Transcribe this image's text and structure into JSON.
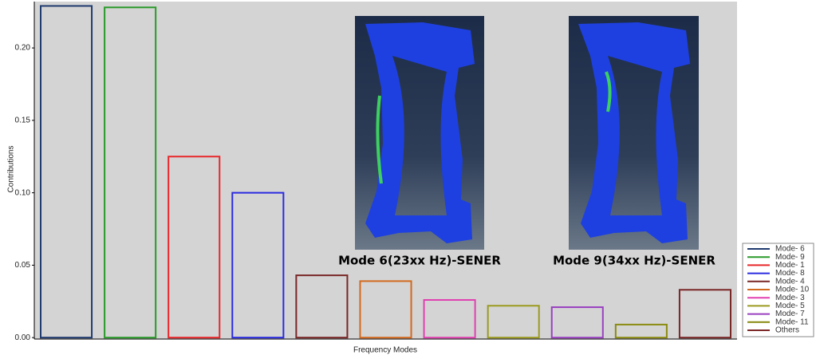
{
  "chart_data": {
    "type": "bar",
    "x_label": "Frequency Modes",
    "y_label": "Contributions",
    "categories": [
      "Mode- 6",
      "Mode- 9",
      "Mode- 1",
      "Mode- 8",
      "Mode- 4",
      "Mode- 10",
      "Mode- 3",
      "Mode- 5",
      "Mode- 7",
      "Mode- 11",
      "Others"
    ],
    "values": [
      0.229,
      0.228,
      0.125,
      0.1,
      0.043,
      0.039,
      0.026,
      0.022,
      0.021,
      0.009,
      0.033
    ],
    "colors": [
      "#1f3a6e",
      "#2a9a2a",
      "#e8262a",
      "#2a2ae0",
      "#7a2626",
      "#d2691e",
      "#e040b0",
      "#9a9a20",
      "#9a40c0",
      "#8a8a10",
      "#7a2626"
    ],
    "ylim": [
      -0.001,
      0.232
    ],
    "yticks": [
      {
        "value": 0,
        "label": "0.00"
      },
      {
        "value": 0.05,
        "label": "0.05"
      },
      {
        "value": 0.1,
        "label": "0.10"
      },
      {
        "value": 0.15,
        "label": "0.15"
      },
      {
        "value": 0.2,
        "label": "0.20"
      }
    ],
    "annotations": [
      "Mode 6(23xx Hz)-SENER",
      "Mode 9(34xx Hz)-SENER"
    ],
    "legend": "lower right"
  }
}
